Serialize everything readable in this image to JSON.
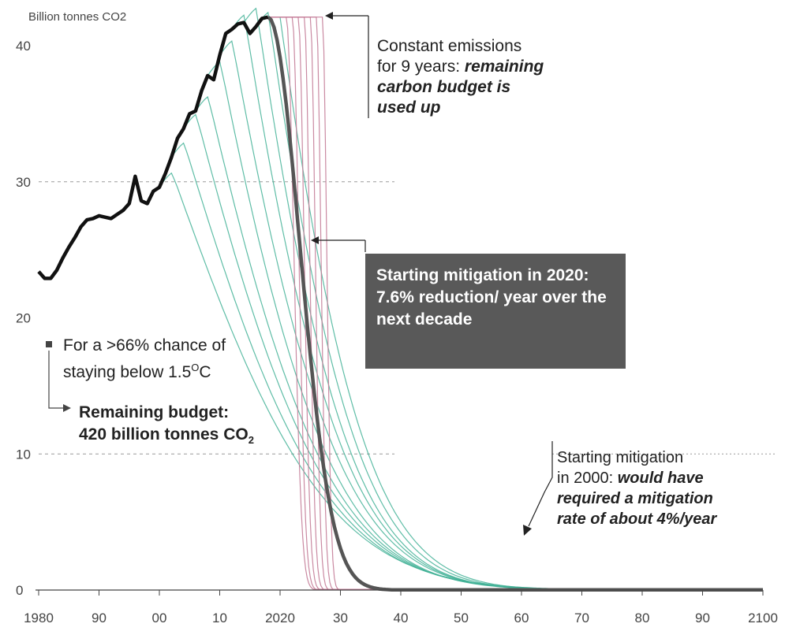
{
  "chart_data": {
    "type": "line",
    "ylabel": "Billion tonnes CO2",
    "ylim": [
      0,
      43
    ],
    "xlim": [
      1980,
      2100
    ],
    "y_ticks": [
      0,
      10,
      20,
      30,
      40
    ],
    "x_ticks": [
      1980,
      1990,
      2000,
      2010,
      2020,
      2030,
      2040,
      2050,
      2060,
      2070,
      2080,
      2090,
      2100
    ],
    "x_tick_labels": [
      "1980",
      "90",
      "00",
      "10",
      "2020",
      "30",
      "40",
      "50",
      "60",
      "70",
      "80",
      "90",
      "2100"
    ],
    "grid": "dashed lines at 10 and 30",
    "series": [
      {
        "name": "",
        "role": "historical",
        "color": "#111111",
        "x": [
          1980,
          1981,
          1982,
          1983,
          1984,
          1985,
          1986,
          1987,
          1988,
          1989,
          1990,
          1991,
          1992,
          1993,
          1994,
          1995,
          1996,
          1997,
          1998,
          1999,
          2000,
          2001,
          2002,
          2003,
          2004,
          2005,
          2006,
          2007,
          2008,
          2009,
          2010,
          2011,
          2012,
          2013,
          2014,
          2015,
          2016,
          2017,
          2018
        ],
        "y": [
          23.4,
          22.9,
          22.9,
          23.5,
          24.4,
          25.2,
          25.9,
          26.7,
          27.2,
          27.3,
          27.5,
          27.4,
          27.3,
          27.6,
          27.9,
          28.4,
          30.4,
          28.6,
          28.4,
          29.3,
          29.6,
          30.6,
          31.8,
          33.2,
          33.9,
          35.0,
          35.2,
          36.7,
          37.8,
          37.5,
          39.3,
          40.9,
          41.2,
          41.6,
          41.7,
          40.9,
          41.4,
          42.0,
          42.1
        ]
      }
    ],
    "scenario_groups": [
      {
        "role": "mitigation pathways starting between 2000 and 2020 (teal)",
        "color": "#43b197",
        "start_years": [
          2000,
          2002,
          2004,
          2006,
          2008,
          2010,
          2012,
          2014,
          2016,
          2018
        ],
        "rates_pct_per_year": [
          4.0,
          4.4,
          4.8,
          5.2,
          5.7,
          6.0,
          6.5,
          7.0,
          7.3,
          7.6
        ]
      },
      {
        "role": "delayed mitigation pathways (pink)",
        "color": "#c47d98",
        "start_years": [
          2021,
          2022,
          2023,
          2024,
          2025,
          2026,
          2027
        ]
      },
      {
        "role": "highlighted 2020 pathway (7.6% reduction/year)",
        "color": "#555555",
        "start_year": 2018,
        "start_value": 42.1,
        "rate_pct_per_year": 7.6
      }
    ]
  },
  "annotations": {
    "constant_line1": "Constant emissions",
    "constant_line2_plain": "for 9 years: ",
    "constant_line2_bold": "remaining",
    "constant_line3": "carbon budget is",
    "constant_line4": "used up",
    "mitigation2020": "Starting mitigation in 2020: 7.6% reduction/ year over the next decade",
    "mitigation2000_line1": "Starting mitigation",
    "mitigation2000_line2_plain": "in 2000: ",
    "mitigation2000_line2_bold": "would have",
    "mitigation2000_line3": "required a mitigation",
    "mitigation2000_line4": "rate of about 4%/year",
    "chance_text_a": "For a >66% chance of",
    "chance_text_b": "staying below 1.5",
    "chance_sup": "O",
    "chance_unit": "C",
    "budget_line1": "Remaining budget:",
    "budget_line2": "420 billion tonnes CO",
    "budget_sub": "2"
  },
  "colors": {
    "historical": "#111111",
    "teal": "#43b197",
    "pink": "#c47d98",
    "highlight": "#555555",
    "box": "#595959"
  }
}
